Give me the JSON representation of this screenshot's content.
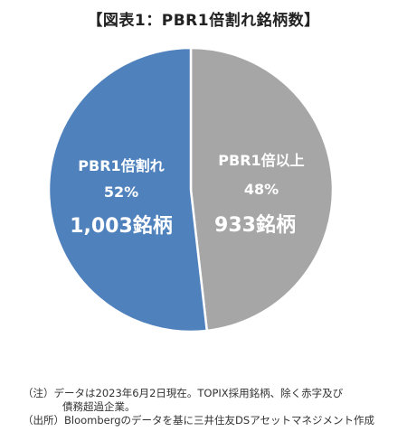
{
  "title": "【図表1：PBR1倍割れ銘柄数】",
  "chart_data": {
    "type": "pie",
    "title": "【図表1：PBR1倍割れ銘柄数】",
    "slices": [
      {
        "name": "PBR1倍割れ",
        "percent_label": "52%",
        "count_label": "1,003銘柄",
        "value": 1003,
        "color": "#4f81bd"
      },
      {
        "name": "PBR1倍以上",
        "percent_label": "48%",
        "count_label": "933銘柄",
        "value": 933,
        "color": "#a6a6a6"
      }
    ]
  },
  "notes": {
    "note1_prefix": "（注）",
    "note1_line1": "データは2023年6月2日現在。TOPIX採用銘柄、除く赤字及び",
    "note1_line2": "債務超過企業。",
    "note2_prefix": "（出所）",
    "note2_text": "Bloombergのデータを基に三井住友DSアセットマネジメント作成"
  }
}
